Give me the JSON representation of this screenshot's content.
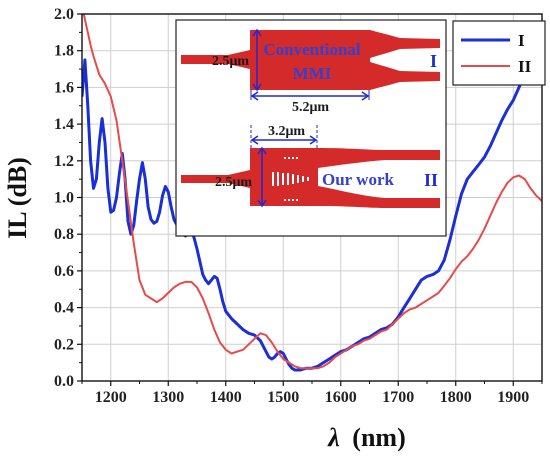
{
  "chart_data": {
    "type": "line",
    "xlabel_symbol": "λ",
    "xlabel_unit": "(nm)",
    "ylabel": "IL (dB)",
    "xlim": [
      1150,
      1950
    ],
    "ylim": [
      0.0,
      2.0
    ],
    "x_ticks": [
      1200,
      1300,
      1400,
      1500,
      1600,
      1700,
      1800,
      1900
    ],
    "y_ticks": [
      "0.0",
      "0.2",
      "0.4",
      "0.6",
      "0.8",
      "1.0",
      "1.2",
      "1.4",
      "1.6",
      "1.8",
      "2.0"
    ],
    "grid": true,
    "legend_position": "top-right",
    "series": [
      {
        "name": "I",
        "color": "#1a2fd6",
        "points": [
          [
            1150,
            1.55
          ],
          [
            1155,
            1.75
          ],
          [
            1160,
            1.5
          ],
          [
            1165,
            1.2
          ],
          [
            1170,
            1.05
          ],
          [
            1175,
            1.1
          ],
          [
            1180,
            1.3
          ],
          [
            1185,
            1.43
          ],
          [
            1190,
            1.3
          ],
          [
            1195,
            1.05
          ],
          [
            1200,
            0.92
          ],
          [
            1205,
            0.93
          ],
          [
            1210,
            1.0
          ],
          [
            1215,
            1.13
          ],
          [
            1220,
            1.24
          ],
          [
            1225,
            1.1
          ],
          [
            1230,
            0.87
          ],
          [
            1235,
            0.8
          ],
          [
            1240,
            0.85
          ],
          [
            1245,
            0.98
          ],
          [
            1250,
            1.1
          ],
          [
            1255,
            1.19
          ],
          [
            1260,
            1.1
          ],
          [
            1265,
            0.95
          ],
          [
            1270,
            0.88
          ],
          [
            1275,
            0.86
          ],
          [
            1280,
            0.87
          ],
          [
            1285,
            0.92
          ],
          [
            1290,
            1.01
          ],
          [
            1295,
            1.06
          ],
          [
            1300,
            1.03
          ],
          [
            1305,
            0.95
          ],
          [
            1310,
            0.88
          ],
          [
            1315,
            0.85
          ],
          [
            1320,
            0.83
          ],
          [
            1325,
            0.8
          ],
          [
            1330,
            0.79
          ],
          [
            1335,
            0.82
          ],
          [
            1340,
            0.82
          ],
          [
            1345,
            0.78
          ],
          [
            1350,
            0.72
          ],
          [
            1355,
            0.65
          ],
          [
            1360,
            0.58
          ],
          [
            1365,
            0.55
          ],
          [
            1370,
            0.53
          ],
          [
            1375,
            0.55
          ],
          [
            1380,
            0.57
          ],
          [
            1385,
            0.56
          ],
          [
            1390,
            0.5
          ],
          [
            1395,
            0.43
          ],
          [
            1400,
            0.38
          ],
          [
            1410,
            0.34
          ],
          [
            1420,
            0.31
          ],
          [
            1430,
            0.28
          ],
          [
            1440,
            0.26
          ],
          [
            1450,
            0.25
          ],
          [
            1460,
            0.22
          ],
          [
            1470,
            0.16
          ],
          [
            1475,
            0.13
          ],
          [
            1480,
            0.12
          ],
          [
            1485,
            0.13
          ],
          [
            1490,
            0.15
          ],
          [
            1495,
            0.16
          ],
          [
            1500,
            0.15
          ],
          [
            1505,
            0.12
          ],
          [
            1510,
            0.09
          ],
          [
            1515,
            0.07
          ],
          [
            1520,
            0.06
          ],
          [
            1530,
            0.06
          ],
          [
            1540,
            0.07
          ],
          [
            1550,
            0.07
          ],
          [
            1560,
            0.08
          ],
          [
            1570,
            0.1
          ],
          [
            1580,
            0.12
          ],
          [
            1590,
            0.14
          ],
          [
            1600,
            0.16
          ],
          [
            1610,
            0.17
          ],
          [
            1620,
            0.19
          ],
          [
            1630,
            0.21
          ],
          [
            1640,
            0.23
          ],
          [
            1650,
            0.24
          ],
          [
            1660,
            0.26
          ],
          [
            1670,
            0.28
          ],
          [
            1680,
            0.29
          ],
          [
            1690,
            0.31
          ],
          [
            1700,
            0.35
          ],
          [
            1710,
            0.4
          ],
          [
            1720,
            0.45
          ],
          [
            1730,
            0.5
          ],
          [
            1740,
            0.55
          ],
          [
            1750,
            0.57
          ],
          [
            1760,
            0.58
          ],
          [
            1770,
            0.6
          ],
          [
            1780,
            0.66
          ],
          [
            1790,
            0.77
          ],
          [
            1800,
            0.9
          ],
          [
            1810,
            1.02
          ],
          [
            1820,
            1.1
          ],
          [
            1830,
            1.14
          ],
          [
            1840,
            1.18
          ],
          [
            1850,
            1.22
          ],
          [
            1860,
            1.28
          ],
          [
            1870,
            1.35
          ],
          [
            1880,
            1.42
          ],
          [
            1890,
            1.48
          ],
          [
            1900,
            1.53
          ],
          [
            1910,
            1.6
          ],
          [
            1920,
            1.67
          ],
          [
            1930,
            1.73
          ],
          [
            1940,
            1.8
          ],
          [
            1950,
            1.85
          ]
        ]
      },
      {
        "name": "II",
        "color": "#e84a4a",
        "points": [
          [
            1150,
            2.05
          ],
          [
            1155,
            1.97
          ],
          [
            1160,
            1.9
          ],
          [
            1165,
            1.83
          ],
          [
            1170,
            1.77
          ],
          [
            1175,
            1.72
          ],
          [
            1180,
            1.67
          ],
          [
            1190,
            1.62
          ],
          [
            1200,
            1.55
          ],
          [
            1210,
            1.42
          ],
          [
            1220,
            1.2
          ],
          [
            1230,
            0.98
          ],
          [
            1240,
            0.75
          ],
          [
            1250,
            0.55
          ],
          [
            1260,
            0.47
          ],
          [
            1270,
            0.45
          ],
          [
            1280,
            0.43
          ],
          [
            1290,
            0.45
          ],
          [
            1300,
            0.48
          ],
          [
            1310,
            0.51
          ],
          [
            1320,
            0.53
          ],
          [
            1330,
            0.54
          ],
          [
            1340,
            0.54
          ],
          [
            1350,
            0.51
          ],
          [
            1360,
            0.45
          ],
          [
            1370,
            0.37
          ],
          [
            1380,
            0.28
          ],
          [
            1390,
            0.21
          ],
          [
            1400,
            0.17
          ],
          [
            1410,
            0.15
          ],
          [
            1420,
            0.16
          ],
          [
            1430,
            0.17
          ],
          [
            1440,
            0.2
          ],
          [
            1450,
            0.23
          ],
          [
            1460,
            0.26
          ],
          [
            1470,
            0.25
          ],
          [
            1480,
            0.21
          ],
          [
            1490,
            0.16
          ],
          [
            1500,
            0.12
          ],
          [
            1510,
            0.1
          ],
          [
            1520,
            0.08
          ],
          [
            1530,
            0.07
          ],
          [
            1540,
            0.07
          ],
          [
            1550,
            0.07
          ],
          [
            1560,
            0.07
          ],
          [
            1570,
            0.08
          ],
          [
            1580,
            0.1
          ],
          [
            1590,
            0.13
          ],
          [
            1600,
            0.15
          ],
          [
            1610,
            0.17
          ],
          [
            1620,
            0.19
          ],
          [
            1630,
            0.2
          ],
          [
            1640,
            0.22
          ],
          [
            1650,
            0.23
          ],
          [
            1660,
            0.25
          ],
          [
            1670,
            0.27
          ],
          [
            1680,
            0.28
          ],
          [
            1690,
            0.31
          ],
          [
            1700,
            0.34
          ],
          [
            1710,
            0.37
          ],
          [
            1720,
            0.39
          ],
          [
            1730,
            0.4
          ],
          [
            1740,
            0.42
          ],
          [
            1750,
            0.44
          ],
          [
            1760,
            0.46
          ],
          [
            1770,
            0.48
          ],
          [
            1780,
            0.52
          ],
          [
            1790,
            0.56
          ],
          [
            1800,
            0.61
          ],
          [
            1810,
            0.65
          ],
          [
            1820,
            0.68
          ],
          [
            1830,
            0.72
          ],
          [
            1840,
            0.77
          ],
          [
            1850,
            0.83
          ],
          [
            1860,
            0.9
          ],
          [
            1870,
            0.97
          ],
          [
            1880,
            1.03
          ],
          [
            1890,
            1.08
          ],
          [
            1900,
            1.11
          ],
          [
            1910,
            1.12
          ],
          [
            1920,
            1.1
          ],
          [
            1930,
            1.05
          ],
          [
            1940,
            1.01
          ],
          [
            1950,
            0.98
          ]
        ]
      }
    ]
  },
  "inset": {
    "top_label_line1": "Conventional",
    "top_label_line2": "MMI",
    "top_roman": "I",
    "top_width": "2.5μm",
    "top_length": "5.2μm",
    "bottom_label": "Our work",
    "bottom_roman": "II",
    "bottom_width": "2.5μm",
    "bottom_length": "3.2μm",
    "device_color": "#d42a2a"
  }
}
